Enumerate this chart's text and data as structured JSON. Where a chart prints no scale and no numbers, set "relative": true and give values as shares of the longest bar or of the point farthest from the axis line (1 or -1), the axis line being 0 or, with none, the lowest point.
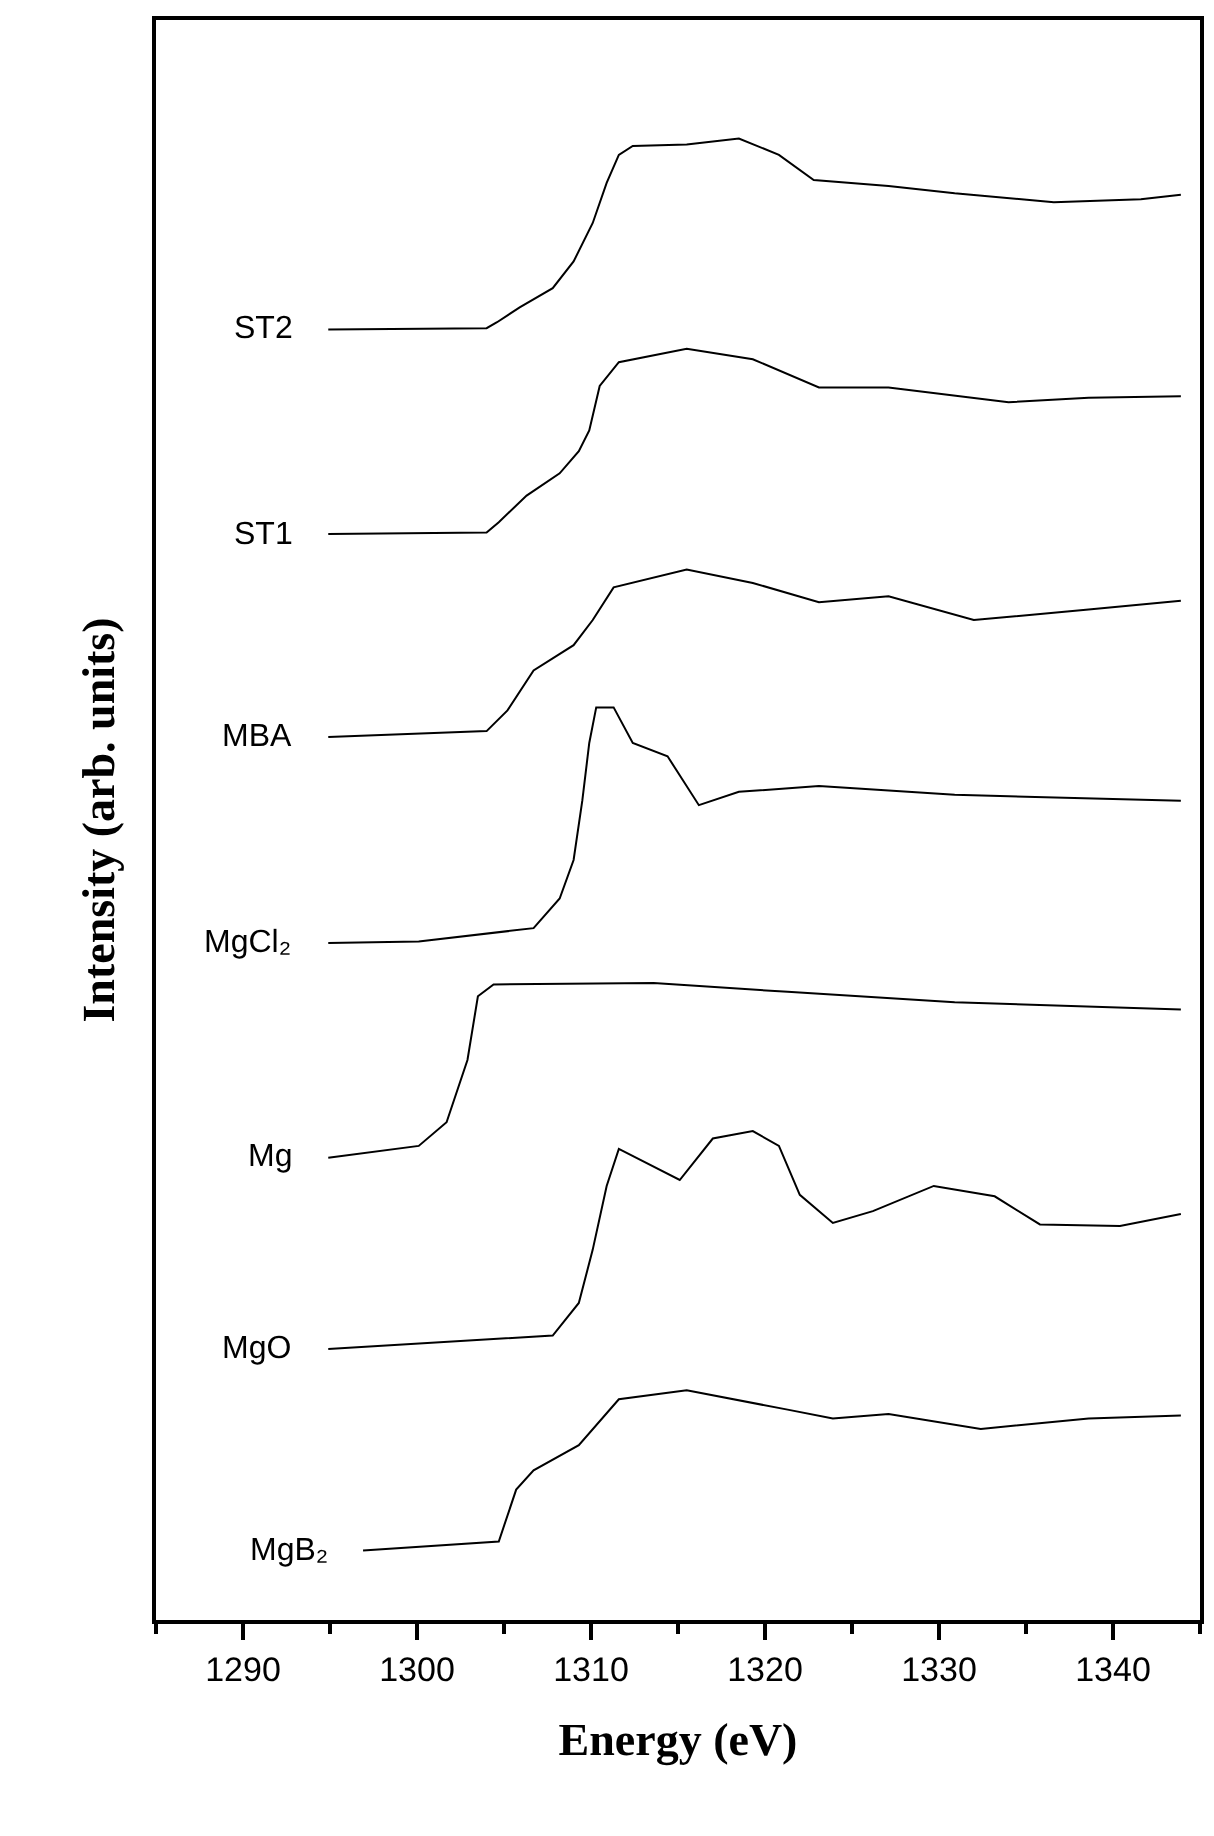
{
  "chart_data": {
    "type": "line",
    "xlabel": "Energy (eV)",
    "ylabel": "Intensity (arb. units)",
    "relative": true,
    "xlim": [
      1285,
      1345
    ],
    "xticks": [
      1290,
      1300,
      1310,
      1320,
      1330,
      1340
    ],
    "grid": false,
    "legend": false,
    "marker": "none",
    "line_style": "solid",
    "series": [
      {
        "name": "ST2",
        "color": "#000000",
        "x": [
          1294.9,
          1304.0,
          1304.6,
          1305.9,
          1307.8,
          1309.0,
          1310.1,
          1310.9,
          1311.6,
          1312.4,
          1315.5,
          1318.5,
          1320.8,
          1322.8,
          1327.1,
          1330.9,
          1336.6,
          1341.6,
          1343.9
        ],
        "values": [
          0.871,
          0.872,
          0.876,
          0.886,
          0.899,
          0.917,
          0.943,
          0.97,
          0.989,
          0.995,
          0.996,
          1,
          0.989,
          0.972,
          0.968,
          0.963,
          0.957,
          0.959,
          0.962
        ]
      },
      {
        "name": "ST1",
        "color": "#000000",
        "x": [
          1294.9,
          1304.0,
          1304.7,
          1306.3,
          1308.2,
          1309.3,
          1309.9,
          1310.5,
          1311.6,
          1315.5,
          1319.3,
          1323.1,
          1327.1,
          1334.0,
          1338.6,
          1343.9
        ],
        "values": [
          0.733,
          0.734,
          0.741,
          0.759,
          0.774,
          0.789,
          0.803,
          0.833,
          0.849,
          0.858,
          0.851,
          0.832,
          0.832,
          0.822,
          0.825,
          0.826
        ]
      },
      {
        "name": "MBA",
        "color": "#000000",
        "x": [
          1294.9,
          1304.0,
          1305.2,
          1306.7,
          1309.0,
          1310.1,
          1311.3,
          1315.5,
          1319.3,
          1323.1,
          1327.1,
          1332.0,
          1338.6,
          1343.9
        ],
        "values": [
          0.596,
          0.6,
          0.614,
          0.641,
          0.658,
          0.675,
          0.697,
          0.709,
          0.7,
          0.687,
          0.691,
          0.675,
          0.682,
          0.688
        ]
      },
      {
        "name": "MgCl₂",
        "color": "#000000",
        "x": [
          1294.9,
          1300.1,
          1306.7,
          1308.2,
          1309.0,
          1309.5,
          1309.9,
          1310.3,
          1311.3,
          1312.4,
          1314.4,
          1316.2,
          1318.5,
          1323.1,
          1330.9,
          1343.9
        ],
        "values": [
          0.457,
          0.458,
          0.467,
          0.487,
          0.513,
          0.553,
          0.592,
          0.616,
          0.616,
          0.592,
          0.583,
          0.55,
          0.559,
          0.563,
          0.557,
          0.553
        ]
      },
      {
        "name": "Mg",
        "color": "#000000",
        "x": [
          1294.9,
          1300.1,
          1301.7,
          1302.9,
          1303.5,
          1304.4,
          1313.6,
          1321.3,
          1330.9,
          1343.9
        ],
        "values": [
          0.312,
          0.32,
          0.336,
          0.378,
          0.421,
          0.429,
          0.43,
          0.424,
          0.417,
          0.412
        ]
      },
      {
        "name": "MgO",
        "color": "#000000",
        "x": [
          1294.9,
          1307.8,
          1309.3,
          1310.1,
          1310.9,
          1311.6,
          1315.1,
          1317.0,
          1319.3,
          1320.8,
          1322.0,
          1323.9,
          1326.2,
          1329.7,
          1333.2,
          1335.8,
          1340.4,
          1343.9
        ],
        "values": [
          0.183,
          0.192,
          0.214,
          0.25,
          0.293,
          0.318,
          0.297,
          0.325,
          0.33,
          0.32,
          0.287,
          0.268,
          0.276,
          0.293,
          0.286,
          0.267,
          0.266,
          0.274
        ]
      },
      {
        "name": "MgB₂",
        "color": "#000000",
        "x": [
          1296.9,
          1304.7,
          1305.7,
          1306.7,
          1309.3,
          1311.6,
          1315.5,
          1321.3,
          1323.9,
          1327.1,
          1332.4,
          1338.6,
          1343.9
        ],
        "values": [
          0.047,
          0.053,
          0.088,
          0.101,
          0.118,
          0.149,
          0.155,
          0.142,
          0.136,
          0.139,
          0.129,
          0.136,
          0.138
        ]
      }
    ]
  }
}
